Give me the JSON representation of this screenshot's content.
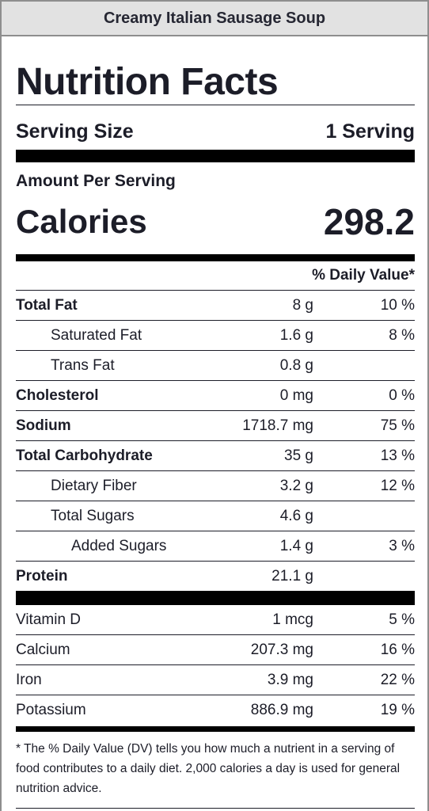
{
  "recipe_title": "Creamy Italian Sausage Soup",
  "label": {
    "heading": "Nutrition Facts",
    "serving_size_label": "Serving Size",
    "serving_size_value": "1 Serving",
    "amount_per_serving": "Amount Per Serving",
    "calories_label": "Calories",
    "calories_value": "298.2",
    "daily_value_header": "% Daily Value*",
    "nutrients": [
      {
        "name": "Total Fat",
        "amount": "8 g",
        "dv": "10 %"
      },
      {
        "name": "Saturated Fat",
        "amount": "1.6 g",
        "dv": "8 %"
      },
      {
        "name": "Trans Fat",
        "amount": "0.8 g",
        "dv": ""
      },
      {
        "name": "Cholesterol",
        "amount": "0 mg",
        "dv": "0 %"
      },
      {
        "name": "Sodium",
        "amount": "1718.7 mg",
        "dv": "75 %"
      },
      {
        "name": "Total Carbohydrate",
        "amount": "35 g",
        "dv": "13 %"
      },
      {
        "name": "Dietary Fiber",
        "amount": "3.2 g",
        "dv": "12 %"
      },
      {
        "name": "Total Sugars",
        "amount": "4.6 g",
        "dv": ""
      },
      {
        "name": "Added Sugars",
        "amount": "1.4 g",
        "dv": "3 %"
      },
      {
        "name": "Protein",
        "amount": "21.1 g",
        "dv": ""
      }
    ],
    "vitamins": [
      {
        "name": "Vitamin D",
        "amount": "1 mcg",
        "dv": "5 %"
      },
      {
        "name": "Calcium",
        "amount": "207.3 mg",
        "dv": "16 %"
      },
      {
        "name": "Iron",
        "amount": "3.9 mg",
        "dv": "22 %"
      },
      {
        "name": "Potassium",
        "amount": "886.9 mg",
        "dv": "19 %"
      }
    ],
    "footnote": "* The % Daily Value (DV) tells you how much a nutrient in a serving of food contributes to a daily diet. 2,000 calories a day is used for general nutrition advice."
  }
}
